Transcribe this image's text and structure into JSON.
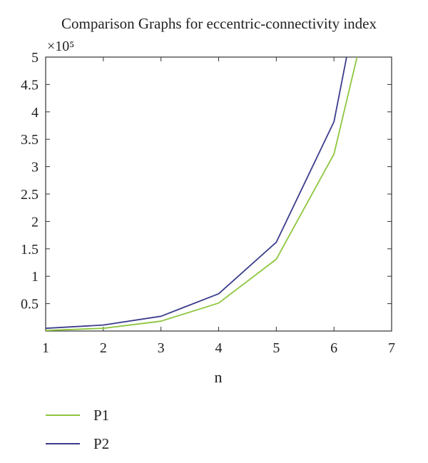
{
  "chart_data": {
    "type": "line",
    "title": "Comparison Graphs for eccentric-connectivity index",
    "xlabel": "n",
    "ylabel": "",
    "y_multiplier": "×10⁵",
    "xlim": [
      1,
      7
    ],
    "ylim": [
      0,
      5
    ],
    "xticks": [
      1,
      2,
      3,
      4,
      5,
      6,
      7
    ],
    "yticks": [
      0.5,
      1,
      1.5,
      2,
      2.5,
      3,
      3.5,
      4,
      4.5,
      5
    ],
    "grid": false,
    "legend_position": "bottom-left",
    "series": [
      {
        "name": "P1",
        "color": "#8dc63f",
        "x": [
          1,
          2,
          3,
          4,
          5,
          6,
          6.4
        ],
        "y": [
          0.01,
          0.05,
          0.18,
          0.51,
          1.31,
          3.23,
          5.0
        ]
      },
      {
        "name": "P2",
        "color": "#3b3c8c",
        "x": [
          1,
          2,
          3,
          4,
          5,
          6,
          6.22
        ],
        "y": [
          0.05,
          0.11,
          0.27,
          0.68,
          1.62,
          3.82,
          5.0
        ]
      }
    ]
  }
}
